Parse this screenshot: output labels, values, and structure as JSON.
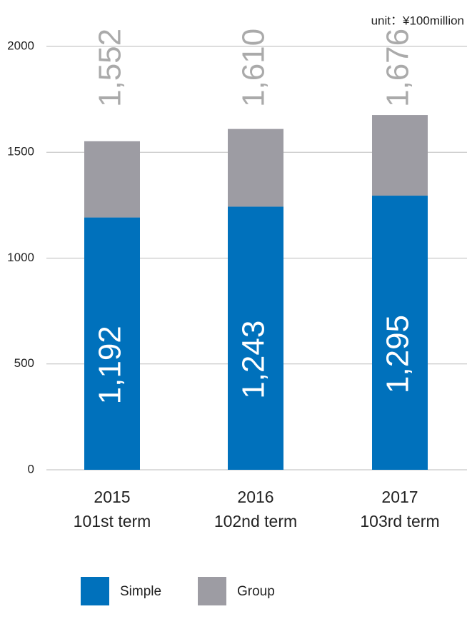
{
  "chart_data": {
    "type": "stacked-bar",
    "unit": "unit：¥100million",
    "categories": [
      [
        "2015",
        "101st term"
      ],
      [
        "2016",
        "102nd term"
      ],
      [
        "2017",
        "103rd term"
      ]
    ],
    "series": [
      {
        "name": "Simple",
        "color": "#0071bc",
        "values": [
          1192,
          1243,
          1295
        ],
        "value_labels": [
          "1,192",
          "1,243",
          "1,295"
        ]
      },
      {
        "name": "Group",
        "color": "#9d9ca3",
        "values": [
          360,
          367,
          381
        ]
      }
    ],
    "totals": [
      1552,
      1610,
      1676
    ],
    "total_labels": [
      "1,552",
      "1,610",
      "1,676"
    ],
    "ylim": [
      0,
      2000
    ],
    "yticks": [
      0,
      500,
      1000,
      1500,
      2000
    ],
    "grid": true
  }
}
